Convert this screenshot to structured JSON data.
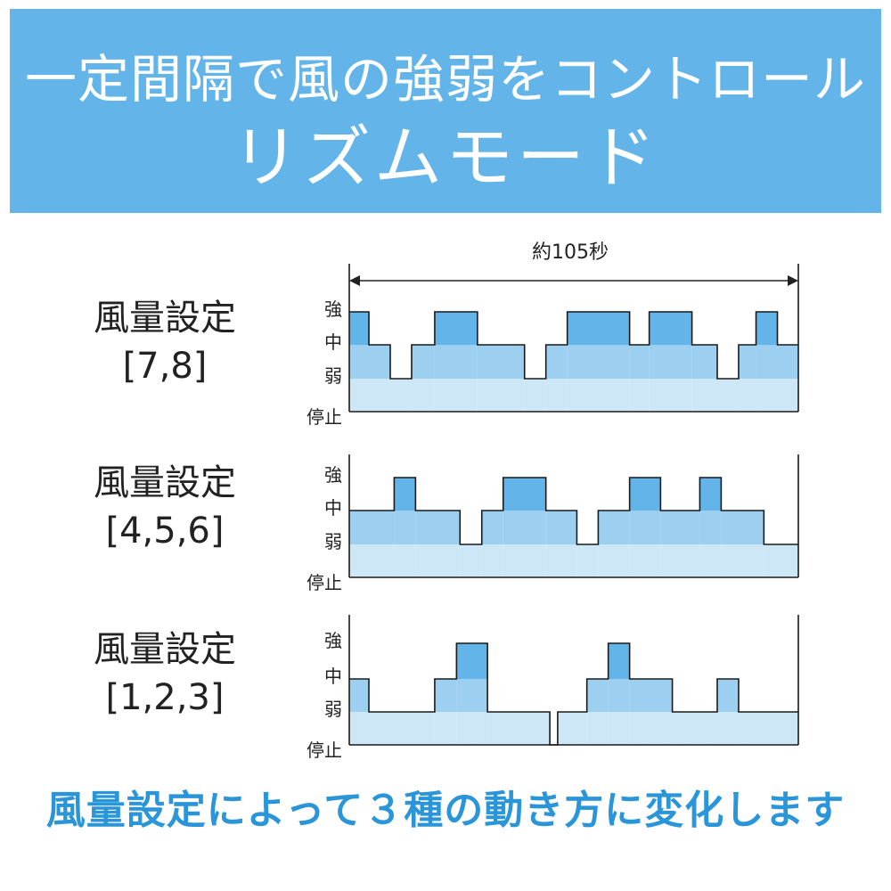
{
  "banner": {
    "line1": "一定間隔で風の強弱をコントロール",
    "line2": "リズムモード"
  },
  "duration_label": "約105秒",
  "level_labels": [
    "強",
    "中",
    "弱",
    "停止"
  ],
  "footer": "風量設定によって３種の動き方に変化します",
  "colors": {
    "banner": "#63b4e8",
    "strong": "#63b4e8",
    "medium": "#9dd0f0",
    "weak": "#cde7f7",
    "footer_text": "#2a95d8"
  },
  "chart_data": [
    {
      "type": "step",
      "title": "風量設定",
      "setting": "[7,8]",
      "levels": [
        "停止",
        "弱",
        "中",
        "強"
      ],
      "segments": [
        {
          "start": 0,
          "end": 4.5,
          "level": 3
        },
        {
          "start": 4.5,
          "end": 9.4,
          "level": 2
        },
        {
          "start": 9.4,
          "end": 14.3,
          "level": 1
        },
        {
          "start": 14.3,
          "end": 19.6,
          "level": 2
        },
        {
          "start": 19.6,
          "end": 29.4,
          "level": 3
        },
        {
          "start": 29.4,
          "end": 40.2,
          "level": 2
        },
        {
          "start": 40.2,
          "end": 45.1,
          "level": 1
        },
        {
          "start": 45.1,
          "end": 50.0,
          "level": 2
        },
        {
          "start": 50.0,
          "end": 64.3,
          "level": 3
        },
        {
          "start": 64.3,
          "end": 68.8,
          "level": 2
        },
        {
          "start": 68.8,
          "end": 78.6,
          "level": 3
        },
        {
          "start": 78.6,
          "end": 84.4,
          "level": 2
        },
        {
          "start": 84.4,
          "end": 89.3,
          "level": 1
        },
        {
          "start": 89.3,
          "end": 93.3,
          "level": 2
        },
        {
          "start": 93.3,
          "end": 98.2,
          "level": 3
        },
        {
          "start": 98.2,
          "end": 103,
          "level": 2
        }
      ]
    },
    {
      "type": "step",
      "title": "風量設定",
      "setting": "[4,5,6]",
      "levels": [
        "停止",
        "弱",
        "中",
        "強"
      ],
      "segments": [
        {
          "start": 0,
          "end": 10.3,
          "level": 2
        },
        {
          "start": 10.3,
          "end": 15.2,
          "level": 3
        },
        {
          "start": 15.2,
          "end": 25.4,
          "level": 2
        },
        {
          "start": 25.4,
          "end": 30.4,
          "level": 1
        },
        {
          "start": 30.4,
          "end": 35.3,
          "level": 2
        },
        {
          "start": 35.3,
          "end": 45.1,
          "level": 3
        },
        {
          "start": 45.1,
          "end": 52.2,
          "level": 2
        },
        {
          "start": 52.2,
          "end": 57.1,
          "level": 1
        },
        {
          "start": 57.1,
          "end": 64.3,
          "level": 2
        },
        {
          "start": 64.3,
          "end": 71.4,
          "level": 3
        },
        {
          "start": 71.4,
          "end": 80.4,
          "level": 2
        },
        {
          "start": 80.4,
          "end": 85.3,
          "level": 3
        },
        {
          "start": 85.3,
          "end": 95.1,
          "level": 2
        },
        {
          "start": 95.1,
          "end": 103,
          "level": 1
        }
      ]
    },
    {
      "type": "step",
      "title": "風量設定",
      "setting": "[1,2,3]",
      "levels": [
        "停止",
        "弱",
        "中",
        "強"
      ],
      "segments": [
        {
          "start": 0,
          "end": 4.5,
          "level": 2
        },
        {
          "start": 4.5,
          "end": 19.6,
          "level": 1
        },
        {
          "start": 19.6,
          "end": 24.6,
          "level": 2
        },
        {
          "start": 24.6,
          "end": 31.7,
          "level": 3
        },
        {
          "start": 31.7,
          "end": 46.0,
          "level": 1
        },
        {
          "start": 46.0,
          "end": 47.8,
          "level": 0
        },
        {
          "start": 47.8,
          "end": 54.5,
          "level": 1
        },
        {
          "start": 54.5,
          "end": 59.4,
          "level": 2
        },
        {
          "start": 59.4,
          "end": 64.3,
          "level": 3
        },
        {
          "start": 64.3,
          "end": 74.1,
          "level": 2
        },
        {
          "start": 74.1,
          "end": 84.4,
          "level": 1
        },
        {
          "start": 84.4,
          "end": 89.3,
          "level": 2
        },
        {
          "start": 89.3,
          "end": 103,
          "level": 1
        }
      ]
    }
  ]
}
